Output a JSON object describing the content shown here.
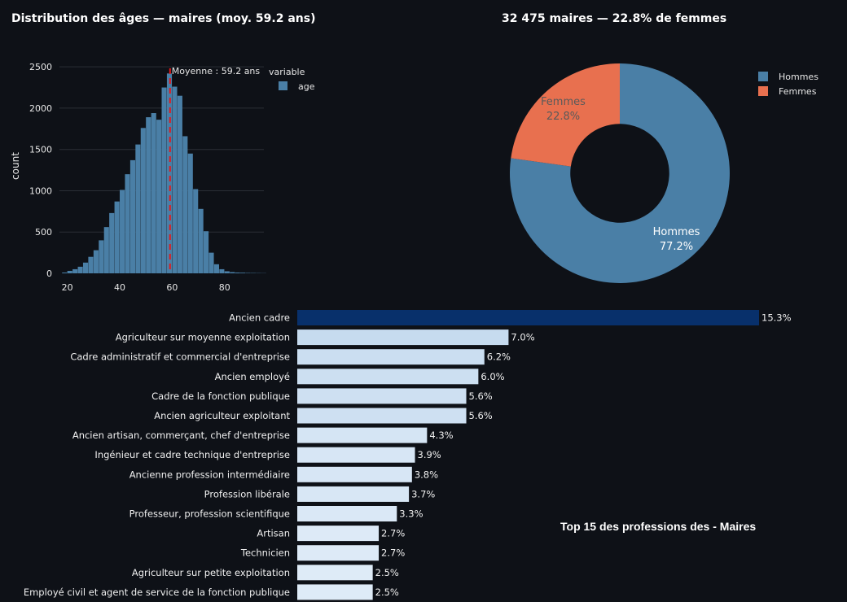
{
  "chart_data": [
    {
      "type": "histogram",
      "title": "Distribution des âges — maires (moy. 59.2 ans)",
      "xlabel": "",
      "ylabel": "count",
      "xlim": [
        17,
        95
      ],
      "ylim": [
        0,
        2600
      ],
      "x_ticks": [
        "20",
        "40",
        "60",
        "80"
      ],
      "y_ticks": [
        "0",
        "500",
        "1000",
        "1500",
        "2000",
        "2500"
      ],
      "bin_start": 18,
      "bin_width": 2,
      "values": [
        10,
        30,
        50,
        80,
        130,
        200,
        280,
        400,
        560,
        730,
        870,
        1010,
        1200,
        1370,
        1560,
        1760,
        1890,
        1940,
        1860,
        2250,
        2420,
        2260,
        2150,
        1660,
        1450,
        1020,
        780,
        510,
        250,
        110,
        50,
        25,
        15,
        10,
        8,
        5,
        4,
        3,
        2
      ],
      "legend_title": "variable",
      "legend_entries": [
        "age"
      ],
      "mean_value": 59.2,
      "mean_label": "Moyenne : 59.2 ans"
    },
    {
      "type": "pie",
      "title": "32 475 maires — 22.8% de femmes",
      "labels": [
        "Hommes",
        "Femmes"
      ],
      "values": [
        77.2,
        22.8
      ],
      "value_labels": [
        "77.2%",
        "22.8%"
      ],
      "hole": 0.45,
      "legend_entries": [
        "Hommes",
        "Femmes"
      ]
    },
    {
      "type": "bar",
      "orientation": "horizontal",
      "title": "Top 15 des professions des - Maires",
      "categories": [
        "Ancien cadre",
        "Agriculteur sur moyenne exploitation",
        "Cadre administratif et commercial d'entreprise",
        "Ancien employé",
        "Cadre de la fonction publique",
        "Ancien agriculteur exploitant",
        "Ancien artisan, commerçant, chef d'entreprise",
        "Ingénieur et cadre technique d'entreprise",
        "Ancienne profession intermédiaire",
        "Profession libérale",
        "Professeur, profession scientifique",
        "Artisan",
        "Technicien",
        "Agriculteur sur petite exploitation",
        "Employé civil et agent de service de la fonction publique"
      ],
      "values": [
        15.3,
        7.0,
        6.2,
        6.0,
        5.6,
        5.6,
        4.3,
        3.9,
        3.8,
        3.7,
        3.3,
        2.7,
        2.7,
        2.5,
        2.5
      ],
      "value_labels": [
        "15.3%",
        "7.0%",
        "6.2%",
        "6.0%",
        "5.6%",
        "5.6%",
        "4.3%",
        "3.9%",
        "3.8%",
        "3.7%",
        "3.3%",
        "2.7%",
        "2.7%",
        "2.5%",
        "2.5%"
      ],
      "xlim": [
        0,
        15.3
      ]
    }
  ],
  "colors": {
    "background": "#0e1117",
    "hist_bar": "#4a7fa6",
    "mean_line": "#e41a1c",
    "hommes": "#4a7fa6",
    "femmes": "#e8704f",
    "femmes_text": "#5a5a5a",
    "blues_dark": "#08306b",
    "blues_light": "#deebf7"
  }
}
